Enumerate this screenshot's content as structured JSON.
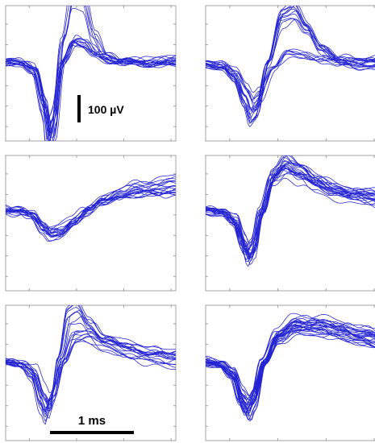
{
  "chart_data": [
    {
      "type": "line",
      "panel": 1,
      "n_traces": 18,
      "templates": [
        {
          "points": [
            [
              0.0,
              0.0
            ],
            [
              0.35,
              0.03
            ],
            [
              0.6,
              0.1
            ],
            [
              0.82,
              0.6
            ],
            [
              0.92,
              1.0
            ],
            [
              1.0,
              0.8
            ],
            [
              1.2,
              -0.3
            ],
            [
              1.42,
              -0.95
            ],
            [
              1.62,
              -0.9
            ],
            [
              1.85,
              -0.35
            ],
            [
              2.1,
              -0.08
            ],
            [
              2.5,
              0.05
            ],
            [
              3.0,
              0.05
            ],
            [
              3.6,
              0.0
            ]
          ],
          "weight": 0.4
        },
        {
          "points": [
            [
              0.0,
              0.0
            ],
            [
              0.35,
              0.02
            ],
            [
              0.6,
              0.1
            ],
            [
              0.82,
              0.65
            ],
            [
              0.92,
              1.15
            ],
            [
              1.0,
              0.95
            ],
            [
              1.2,
              0.0
            ],
            [
              1.45,
              -0.3
            ],
            [
              1.65,
              -0.25
            ],
            [
              1.9,
              -0.12
            ],
            [
              2.3,
              -0.02
            ],
            [
              3.0,
              0.0
            ],
            [
              3.6,
              0.0
            ]
          ],
          "weight": 0.6
        }
      ],
      "axis_ticks_x": [
        0.5,
        1.5,
        2.5,
        3.5
      ],
      "axis_ticks_y": [
        -150,
        -100,
        -50,
        0,
        50,
        100
      ],
      "xlim": [
        0,
        3.6
      ],
      "ylim": [
        -185,
        145
      ]
    },
    {
      "type": "line",
      "panel": 2,
      "n_traces": 18,
      "templates": [
        {
          "points": [
            [
              0.0,
              0.0
            ],
            [
              0.35,
              0.05
            ],
            [
              0.6,
              0.25
            ],
            [
              0.82,
              0.7
            ],
            [
              0.95,
              1.0
            ],
            [
              1.05,
              0.9
            ],
            [
              1.3,
              -0.05
            ],
            [
              1.6,
              -0.9
            ],
            [
              1.85,
              -1.0
            ],
            [
              2.1,
              -0.7
            ],
            [
              2.4,
              -0.3
            ],
            [
              2.8,
              -0.05
            ],
            [
              3.2,
              0.02
            ],
            [
              3.6,
              0.0
            ]
          ],
          "weight": 0.45
        },
        {
          "points": [
            [
              0.0,
              0.0
            ],
            [
              0.35,
              0.05
            ],
            [
              0.6,
              0.2
            ],
            [
              0.85,
              0.6
            ],
            [
              0.97,
              0.85
            ],
            [
              1.1,
              0.7
            ],
            [
              1.4,
              0.1
            ],
            [
              1.7,
              -0.2
            ],
            [
              2.0,
              -0.15
            ],
            [
              2.4,
              -0.05
            ],
            [
              2.8,
              0.0
            ],
            [
              3.6,
              0.0
            ]
          ],
          "weight": 0.55
        }
      ],
      "axis_ticks_x": [
        0.5,
        1.5,
        2.5,
        3.5
      ],
      "axis_ticks_y": [
        -150,
        -100,
        -50,
        0,
        50,
        100
      ],
      "xlim": [
        0,
        3.6
      ],
      "ylim": [
        -185,
        145
      ]
    },
    {
      "type": "line",
      "panel": 3,
      "n_traces": 18,
      "templates": [
        {
          "points": [
            [
              0.0,
              0.0
            ],
            [
              0.3,
              0.03
            ],
            [
              0.55,
              0.15
            ],
            [
              0.8,
              0.55
            ],
            [
              0.95,
              0.75
            ],
            [
              1.15,
              0.7
            ],
            [
              1.45,
              0.35
            ],
            [
              1.75,
              0.0
            ],
            [
              2.05,
              -0.28
            ],
            [
              2.4,
              -0.5
            ],
            [
              2.8,
              -0.6
            ],
            [
              3.2,
              -0.68
            ],
            [
              3.6,
              -0.72
            ]
          ],
          "weight": 1.0
        }
      ],
      "axis_ticks_x": [
        0.5,
        1.5,
        2.5,
        3.5
      ],
      "axis_ticks_y": [
        -150,
        -100,
        -50,
        0,
        50,
        100
      ],
      "xlim": [
        0,
        3.6
      ],
      "ylim": [
        -185,
        145
      ]
    },
    {
      "type": "line",
      "panel": 4,
      "n_traces": 22,
      "templates": [
        {
          "points": [
            [
              0.0,
              0.0
            ],
            [
              0.35,
              0.05
            ],
            [
              0.6,
              0.25
            ],
            [
              0.78,
              0.75
            ],
            [
              0.88,
              1.0
            ],
            [
              0.97,
              0.85
            ],
            [
              1.15,
              0.05
            ],
            [
              1.4,
              -0.75
            ],
            [
              1.65,
              -1.0
            ],
            [
              1.95,
              -0.85
            ],
            [
              2.3,
              -0.6
            ],
            [
              2.7,
              -0.45
            ],
            [
              3.1,
              -0.35
            ],
            [
              3.6,
              -0.3
            ]
          ],
          "weight": 1.0
        }
      ],
      "axis_ticks_x": [
        0.5,
        1.5,
        2.5,
        3.5
      ],
      "axis_ticks_y": [
        -150,
        -100,
        -50,
        0,
        50,
        100
      ],
      "xlim": [
        0,
        3.6
      ],
      "ylim": [
        -185,
        145
      ]
    },
    {
      "type": "line",
      "panel": 5,
      "n_traces": 18,
      "templates": [
        {
          "points": [
            [
              0.0,
              0.0
            ],
            [
              0.35,
              0.05
            ],
            [
              0.58,
              0.25
            ],
            [
              0.78,
              0.8
            ],
            [
              0.88,
              1.0
            ],
            [
              0.97,
              0.8
            ],
            [
              1.15,
              -0.1
            ],
            [
              1.35,
              -0.9
            ],
            [
              1.55,
              -1.0
            ],
            [
              1.8,
              -0.7
            ],
            [
              2.1,
              -0.45
            ],
            [
              2.6,
              -0.3
            ],
            [
              3.1,
              -0.2
            ],
            [
              3.6,
              -0.1
            ]
          ],
          "weight": 0.5
        },
        {
          "points": [
            [
              0.0,
              0.0
            ],
            [
              0.35,
              0.05
            ],
            [
              0.58,
              0.2
            ],
            [
              0.78,
              0.65
            ],
            [
              0.88,
              0.85
            ],
            [
              0.98,
              0.65
            ],
            [
              1.2,
              0.0
            ],
            [
              1.45,
              -0.45
            ],
            [
              1.75,
              -0.5
            ],
            [
              2.1,
              -0.3
            ],
            [
              2.6,
              -0.15
            ],
            [
              3.1,
              -0.05
            ],
            [
              3.6,
              0.0
            ]
          ],
          "weight": 0.5
        }
      ],
      "axis_ticks_x": [
        0.5,
        1.5,
        2.5,
        3.5
      ],
      "axis_ticks_y": [
        -150,
        -100,
        -50,
        0,
        50,
        100
      ],
      "xlim": [
        0,
        3.6
      ],
      "ylim": [
        -185,
        145
      ]
    },
    {
      "type": "line",
      "panel": 6,
      "n_traces": 26,
      "templates": [
        {
          "points": [
            [
              0.0,
              0.0
            ],
            [
              0.3,
              0.05
            ],
            [
              0.55,
              0.25
            ],
            [
              0.75,
              0.8
            ],
            [
              0.88,
              1.0
            ],
            [
              0.98,
              0.8
            ],
            [
              1.2,
              0.0
            ],
            [
              1.5,
              -0.55
            ],
            [
              1.85,
              -0.75
            ],
            [
              2.3,
              -0.75
            ],
            [
              2.8,
              -0.65
            ],
            [
              3.2,
              -0.55
            ],
            [
              3.6,
              -0.45
            ]
          ],
          "weight": 1.0
        }
      ],
      "axis_ticks_x": [
        0.5,
        1.5,
        2.5,
        3.5
      ],
      "axis_ticks_y": [
        -150,
        -100,
        -50,
        0,
        50,
        100
      ],
      "xlim": [
        0,
        3.6
      ],
      "ylim": [
        -185,
        145
      ]
    }
  ],
  "scale_bars": {
    "amplitude": {
      "label": "100 µV",
      "value_uV": 100
    },
    "time": {
      "label": "1 ms",
      "value_ms": 1
    }
  },
  "colors": {
    "trace": "#2323d2",
    "frame": "#8c8c8c",
    "scale_bar": "#000000",
    "background": "#ffffff"
  }
}
